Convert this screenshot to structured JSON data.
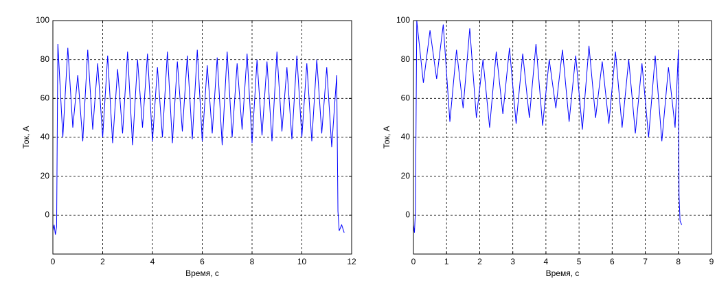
{
  "chart_data": [
    {
      "type": "line",
      "xlabel": "Время, с",
      "ylabel": "Ток, А",
      "color": "#0000ff",
      "grid": true,
      "xlim": [
        0,
        12
      ],
      "xticks": [
        0,
        2,
        4,
        6,
        8,
        10,
        12
      ],
      "ylim": [
        -20,
        100
      ],
      "yticks": [
        0,
        20,
        40,
        60,
        80,
        100
      ],
      "x": [
        0,
        0.05,
        0.1,
        0.15,
        0.2,
        0.4,
        0.6,
        0.8,
        1,
        1.2,
        1.4,
        1.6,
        1.8,
        2,
        2.2,
        2.4,
        2.6,
        2.8,
        3,
        3.2,
        3.4,
        3.6,
        3.8,
        4,
        4.2,
        4.4,
        4.6,
        4.8,
        5,
        5.2,
        5.4,
        5.6,
        5.8,
        6,
        6.2,
        6.4,
        6.6,
        6.8,
        7,
        7.2,
        7.4,
        7.6,
        7.8,
        8,
        8.2,
        8.4,
        8.6,
        8.8,
        9,
        9.2,
        9.4,
        9.6,
        9.8,
        10,
        10.2,
        10.4,
        10.6,
        10.8,
        11,
        11.2,
        11.4,
        11.45,
        11.5,
        11.6,
        11.7
      ],
      "values": [
        -8,
        -5,
        -10,
        -6,
        88,
        40,
        86,
        45,
        72,
        38,
        85,
        44,
        78,
        40,
        82,
        37,
        75,
        42,
        84,
        36,
        80,
        45,
        83,
        38,
        76,
        40,
        84,
        37,
        79,
        43,
        82,
        39,
        85,
        38,
        77,
        42,
        81,
        36,
        84,
        40,
        78,
        44,
        83,
        37,
        80,
        41,
        79,
        38,
        84,
        43,
        76,
        39,
        82,
        40,
        78,
        38,
        80,
        42,
        76,
        35,
        72,
        2,
        -8,
        -5,
        -9
      ]
    },
    {
      "type": "line",
      "xlabel": "Время, с",
      "ylabel": "Ток, А",
      "color": "#0000ff",
      "grid": true,
      "xlim": [
        0,
        9
      ],
      "xticks": [
        0,
        1,
        2,
        3,
        4,
        5,
        6,
        7,
        8,
        9
      ],
      "ylim": [
        -20,
        100
      ],
      "yticks": [
        0,
        20,
        40,
        60,
        80,
        100
      ],
      "x": [
        0,
        0.03,
        0.06,
        0.1,
        0.3,
        0.5,
        0.7,
        0.9,
        1.1,
        1.3,
        1.5,
        1.7,
        1.9,
        2.1,
        2.3,
        2.5,
        2.7,
        2.9,
        3.1,
        3.3,
        3.5,
        3.7,
        3.9,
        4.1,
        4.3,
        4.5,
        4.7,
        4.9,
        5.1,
        5.3,
        5.5,
        5.7,
        5.9,
        6.1,
        6.3,
        6.5,
        6.7,
        6.9,
        7.1,
        7.3,
        7.5,
        7.7,
        7.9,
        8,
        8.02,
        8.05,
        8.1
      ],
      "values": [
        -5,
        -9,
        2,
        100,
        68,
        95,
        70,
        98,
        48,
        85,
        55,
        96,
        50,
        80,
        45,
        84,
        52,
        86,
        47,
        83,
        50,
        88,
        46,
        80,
        55,
        85,
        48,
        82,
        44,
        87,
        50,
        79,
        47,
        84,
        45,
        80,
        42,
        78,
        40,
        82,
        38,
        76,
        45,
        85,
        10,
        -3,
        -5
      ]
    }
  ]
}
